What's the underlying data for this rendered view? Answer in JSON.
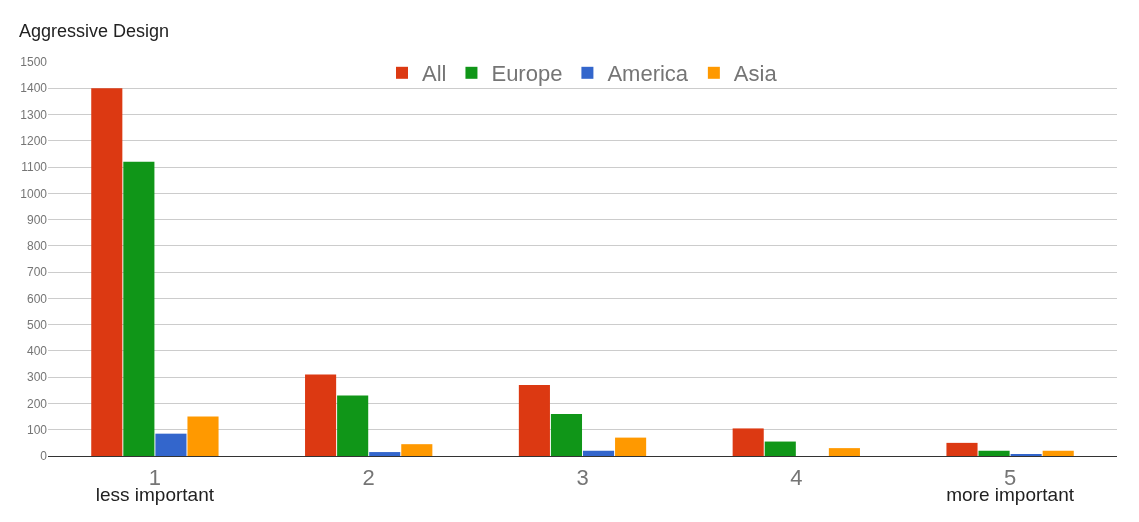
{
  "chart_data": {
    "type": "bar",
    "title": "Aggressive Design",
    "categories": [
      "1\nless important",
      "2",
      "3",
      "4",
      "5\nmore important"
    ],
    "series": [
      {
        "name": "All",
        "color": "#dc3912",
        "values": [
          1400,
          310,
          270,
          105,
          50
        ]
      },
      {
        "name": "Europe",
        "color": "#109618",
        "values": [
          1120,
          230,
          160,
          55,
          20
        ]
      },
      {
        "name": "America",
        "color": "#3366cc",
        "values": [
          85,
          15,
          20,
          0,
          5
        ]
      },
      {
        "name": "Asia",
        "color": "#ff9900",
        "values": [
          150,
          45,
          70,
          30,
          20
        ]
      }
    ],
    "ylim": [
      0,
      1500
    ],
    "yticks": [
      0,
      100,
      200,
      300,
      400,
      500,
      600,
      700,
      800,
      900,
      1000,
      1100,
      1200,
      1300,
      1400,
      1500
    ],
    "grid": "y",
    "legend": "top"
  }
}
